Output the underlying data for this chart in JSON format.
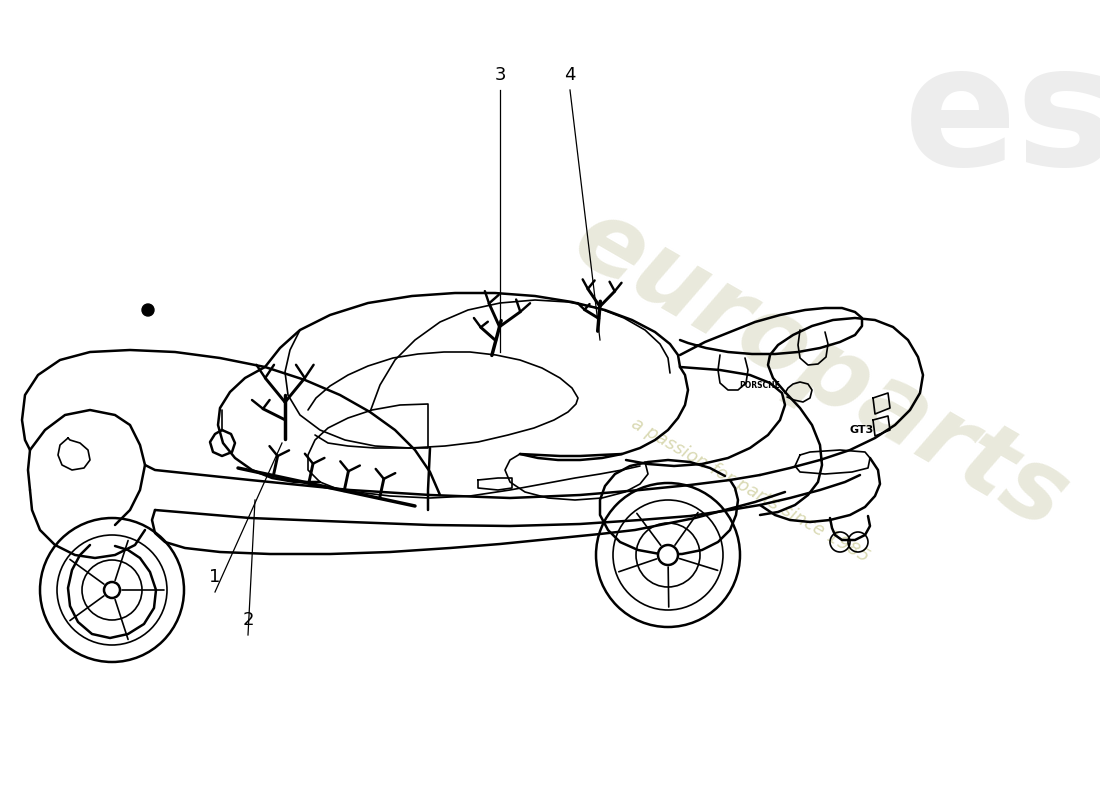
{
  "background_color": "#ffffff",
  "line_color": "#000000",
  "lw_main": 1.8,
  "lw_detail": 1.2,
  "lw_harness": 2.5,
  "figsize": [
    11.0,
    8.0
  ],
  "dpi": 100,
  "watermark_europarts_color": "#d8d8c0",
  "watermark_slogan_color": "#d0d0a0",
  "watermark_es_color": "#d0d0d0",
  "part_label_fontsize": 13,
  "part_labels": [
    "1",
    "2",
    "3",
    "4"
  ]
}
